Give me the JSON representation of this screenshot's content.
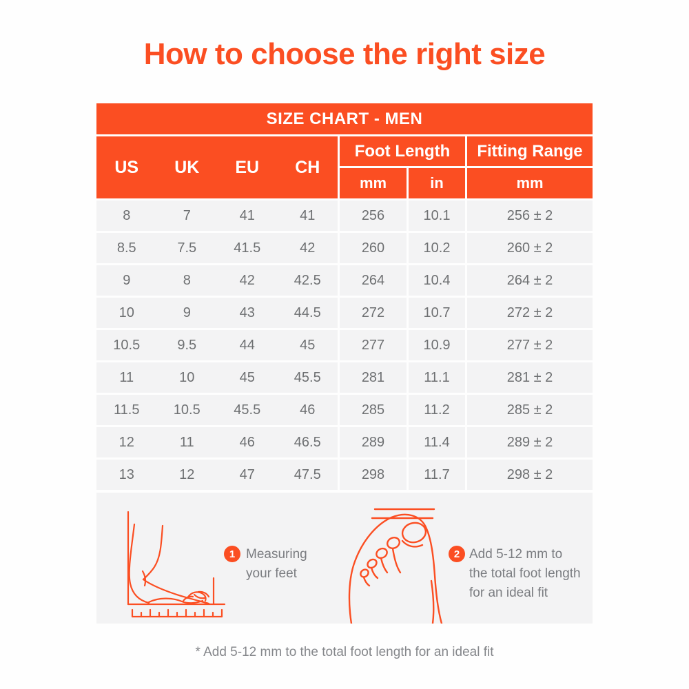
{
  "title": "How to choose the right size",
  "colors": {
    "accent_orange": "#FB4E22",
    "row_background": "#F3F3F4",
    "body_text": "#6E7072",
    "caption_text": "#7A7C80"
  },
  "table": {
    "banner": "SIZE CHART - MEN",
    "size_columns": [
      "US",
      "UK",
      "EU",
      "CH"
    ],
    "group_headers": {
      "foot_length": "Foot Length",
      "fitting_range": "Fitting Range"
    },
    "unit_headers": {
      "foot_mm": "mm",
      "foot_in": "in",
      "fitting_mm": "mm"
    },
    "rows": [
      [
        "8",
        "7",
        "41",
        "41",
        "256",
        "10.1",
        "256 ± 2"
      ],
      [
        "8.5",
        "7.5",
        "41.5",
        "42",
        "260",
        "10.2",
        "260 ± 2"
      ],
      [
        "9",
        "8",
        "42",
        "42.5",
        "264",
        "10.4",
        "264 ± 2"
      ],
      [
        "10",
        "9",
        "43",
        "44.5",
        "272",
        "10.7",
        "272 ± 2"
      ],
      [
        "10.5",
        "9.5",
        "44",
        "45",
        "277",
        "10.9",
        "277 ± 2"
      ],
      [
        "11",
        "10",
        "45",
        "45.5",
        "281",
        "11.1",
        "281 ± 2"
      ],
      [
        "11.5",
        "10.5",
        "45.5",
        "46",
        "285",
        "11.2",
        "285 ± 2"
      ],
      [
        "12",
        "11",
        "46",
        "46.5",
        "289",
        "11.4",
        "289 ± 2"
      ],
      [
        "13",
        "12",
        "47",
        "47.5",
        "298",
        "11.7",
        "298 ± 2"
      ]
    ]
  },
  "steps": [
    {
      "number": "1",
      "text": "Measuring your feet"
    },
    {
      "number": "2",
      "text": "Add 5-12 mm to the total foot length for an ideal fit"
    }
  ],
  "footnote": "* Add 5-12 mm to the total foot length for an ideal fit",
  "chart_data": {
    "type": "table",
    "title": "SIZE CHART - MEN",
    "columns": [
      "US",
      "UK",
      "EU",
      "CH",
      "Foot Length mm",
      "Foot Length in",
      "Fitting Range mm"
    ],
    "rows": [
      [
        8,
        7,
        41,
        41,
        256,
        10.1,
        "256 ± 2"
      ],
      [
        8.5,
        7.5,
        41.5,
        42,
        260,
        10.2,
        "260 ± 2"
      ],
      [
        9,
        8,
        42,
        42.5,
        264,
        10.4,
        "264 ± 2"
      ],
      [
        10,
        9,
        43,
        44.5,
        272,
        10.7,
        "272 ± 2"
      ],
      [
        10.5,
        9.5,
        44,
        45,
        277,
        10.9,
        "277 ± 2"
      ],
      [
        11,
        10,
        45,
        45.5,
        281,
        11.1,
        "281 ± 2"
      ],
      [
        11.5,
        10.5,
        45.5,
        46,
        285,
        11.2,
        "285 ± 2"
      ],
      [
        12,
        11,
        46,
        46.5,
        289,
        11.4,
        "289 ± 2"
      ],
      [
        13,
        12,
        47,
        47.5,
        298,
        11.7,
        "298 ± 2"
      ]
    ]
  }
}
